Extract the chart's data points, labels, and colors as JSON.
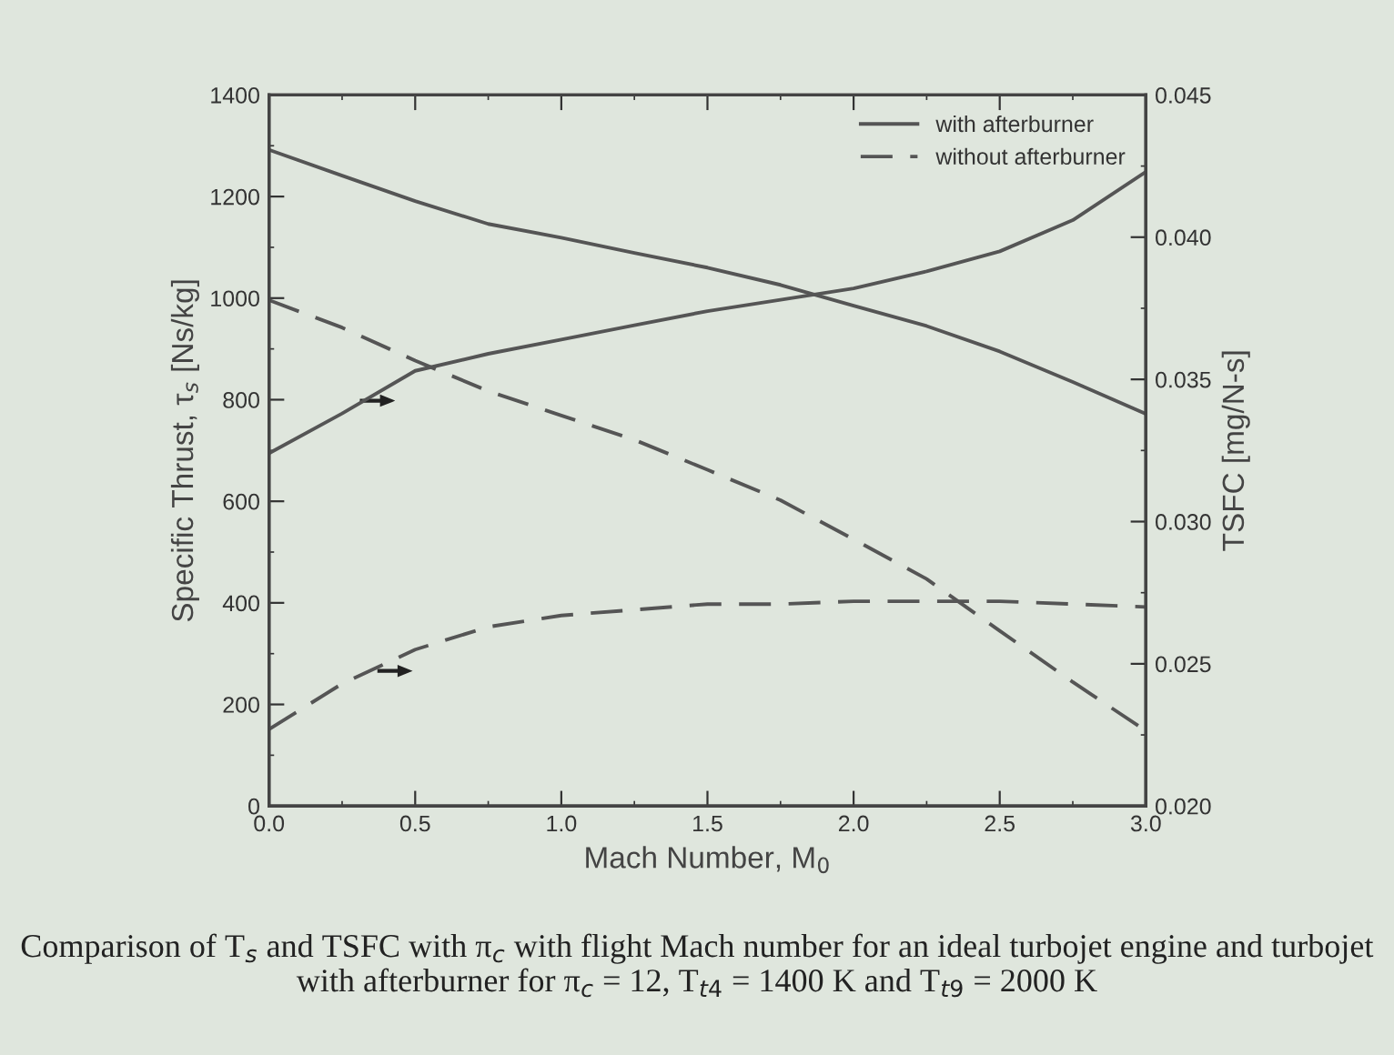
{
  "chart_data": {
    "type": "line",
    "xlabel": "Mach Number, M$_{0}$",
    "ylabel": "Specific Thrust, τ$_{s}$ [Ns/kg]",
    "y2label": "TSFC [mg/N-s]",
    "x": [
      0,
      0.25,
      0.5,
      0.75,
      1.0,
      1.25,
      1.5,
      1.75,
      2.0,
      2.25,
      2.5,
      2.75,
      3.0
    ],
    "series": [
      {
        "name": "with afterburner",
        "color": "#555555",
        "line_style": "solid",
        "values": [
          1292,
          1241,
          1191,
          1146,
          1119,
          1089,
          1060,
          1026,
          985,
          945,
          895,
          835,
          772
        ]
      },
      {
        "name": "without afterburner",
        "color": "#555555",
        "line_style": "dashed",
        "values": [
          996,
          942,
          877,
          817,
          769,
          721,
          662,
          602,
          525,
          447,
          345,
          244,
          148
        ]
      },
      {
        "axis": "y2",
        "color": "#555555",
        "line_style": "solid",
        "values": [
          0.0324,
          0.0338,
          0.0353,
          0.0359,
          0.0364,
          0.0369,
          0.0374,
          0.0378,
          0.0382,
          0.0388,
          0.0395,
          0.0406,
          0.0423
        ]
      },
      {
        "axis": "y2",
        "color": "#555555",
        "line_style": "dashed",
        "values": [
          0.0227,
          0.0243,
          0.0255,
          0.0263,
          0.0267,
          0.0269,
          0.0271,
          0.0271,
          0.0272,
          0.0272,
          0.0272,
          0.0271,
          0.027
        ]
      }
    ],
    "xlim": [
      0,
      3
    ],
    "xticks": [
      {
        "value": 0,
        "label": "0.0"
      },
      {
        "value": 0.5,
        "label": "0.5"
      },
      {
        "value": 1,
        "label": "1.0"
      },
      {
        "value": 1.5,
        "label": "1.5"
      },
      {
        "value": 2,
        "label": "2.0"
      },
      {
        "value": 2.5,
        "label": "2.5"
      },
      {
        "value": 3,
        "label": "3.0"
      }
    ],
    "ylim": [
      0,
      1400
    ],
    "yticks": [
      0,
      200,
      400,
      600,
      800,
      1000,
      1200,
      1400
    ],
    "y2lim": [
      0.02,
      0.045
    ],
    "y2ticks": [
      {
        "value": 0.02,
        "label": "0.020"
      },
      {
        "value": 0.025,
        "label": "0.025"
      },
      {
        "value": 0.03,
        "label": "0.030"
      },
      {
        "value": 0.035,
        "label": "0.035"
      },
      {
        "value": 0.04,
        "label": "0.040"
      },
      {
        "value": 0.045,
        "label": "0.045"
      }
    ],
    "legend": "top right",
    "grid": false,
    "annotations": [
      "Comparison of T$_{s}$ and TSFC with π$_{c}$ with flight Mach number for an ideal turbojet engine and turbojet with afterburner for π$_{c}$ = 12, T$_{t4}$ = 1400 K and T$_{t9}$ = 2000 K"
    ]
  }
}
